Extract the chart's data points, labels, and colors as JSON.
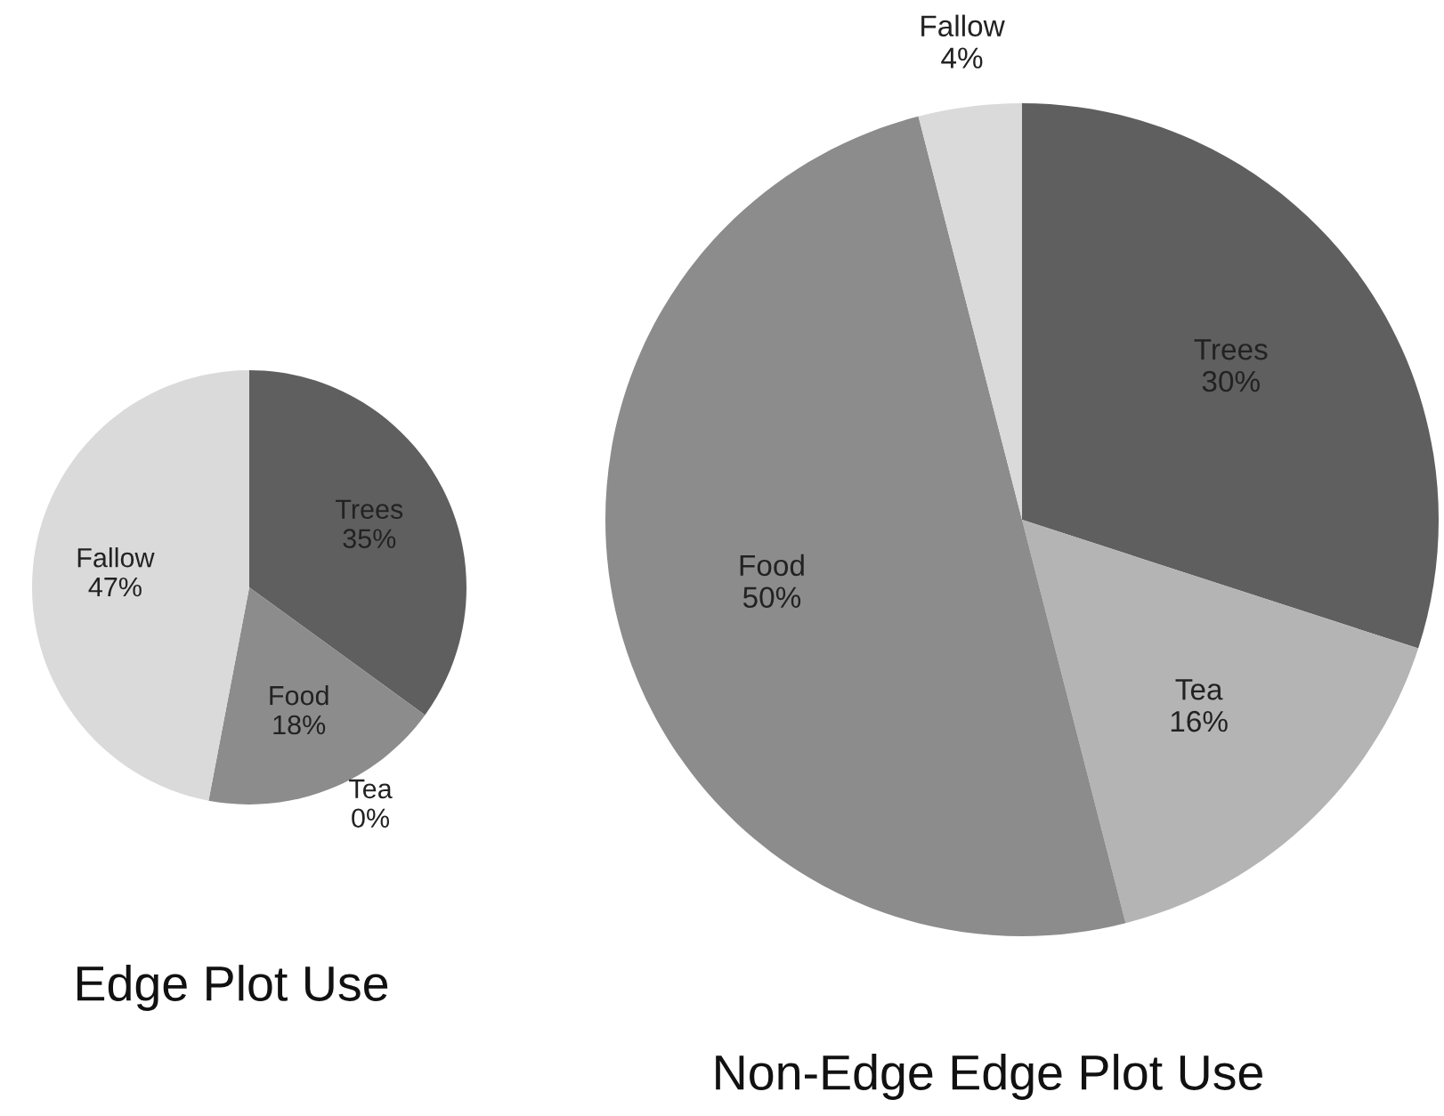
{
  "chart_data": [
    {
      "type": "pie",
      "title": "Edge Plot Use",
      "categories": [
        "Trees",
        "Tea",
        "Food",
        "Fallow"
      ],
      "values": [
        35,
        0,
        18,
        47
      ],
      "value_labels": [
        "35%",
        "0%",
        "18%",
        "47%"
      ],
      "colors": [
        "#5f5f5f",
        "#b4b4b4",
        "#8c8c8c",
        "#dadada"
      ],
      "legend": false
    },
    {
      "type": "pie",
      "title": "Non-Edge Edge Plot Use",
      "categories": [
        "Trees",
        "Tea",
        "Food",
        "Fallow"
      ],
      "values": [
        30,
        16,
        50,
        4
      ],
      "value_labels": [
        "30%",
        "16%",
        "50%",
        "4%"
      ],
      "colors": [
        "#5f5f5f",
        "#b4b4b4",
        "#8c8c8c",
        "#dadada"
      ],
      "legend": false
    }
  ]
}
